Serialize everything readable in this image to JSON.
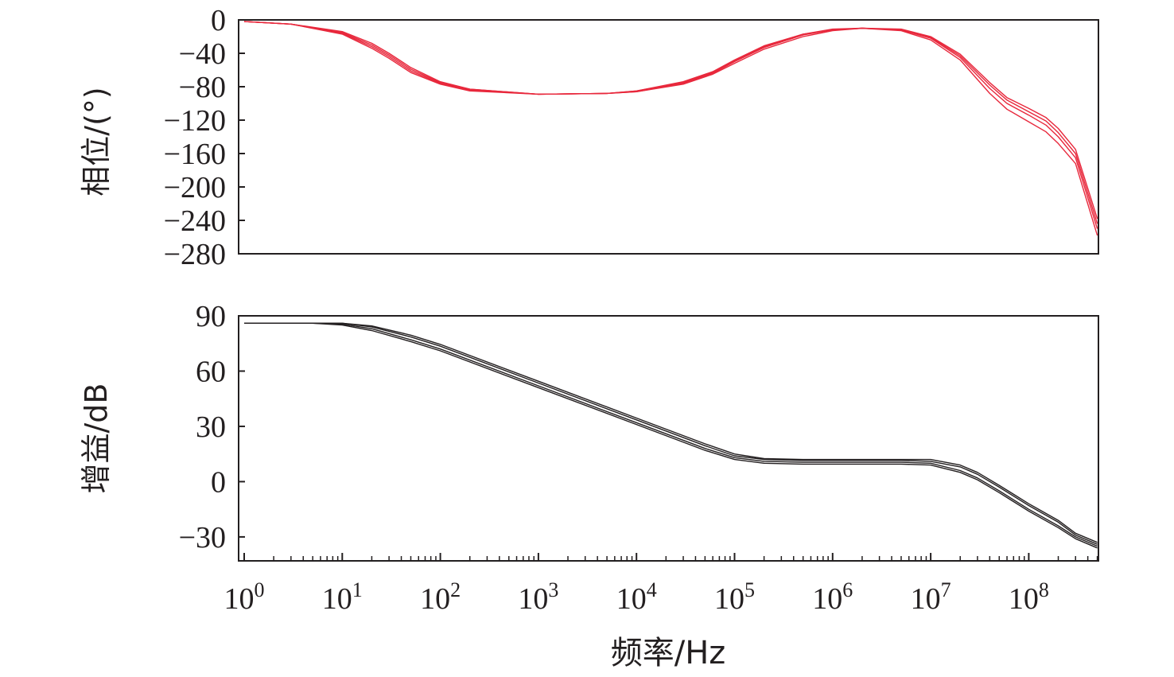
{
  "chart_data": [
    {
      "type": "line",
      "panel": "phase",
      "ylabel": "相位/(°)",
      "xscale": "log",
      "xlim": [
        1,
        500000000
      ],
      "ylim": [
        -280,
        0
      ],
      "yticks": [
        0,
        -40,
        -80,
        -120,
        -160,
        -200,
        -240,
        -280
      ],
      "ytick_labels": [
        "0",
        "−40",
        "−80",
        "−120",
        "−160",
        "−200",
        "−240",
        "−280"
      ],
      "grid": false,
      "line_color": "#e8283c",
      "x": [
        1,
        3,
        10,
        20,
        30,
        50,
        100,
        200,
        1000,
        5000,
        10000,
        30000,
        60000,
        100000,
        200000,
        500000,
        1000000,
        2000000,
        5000000,
        10000000,
        20000000,
        40000000,
        60000000,
        100000000,
        150000000,
        200000000,
        300000000,
        500000000
      ],
      "series": [
        {
          "values": [
            -2,
            -5,
            -17,
            -34,
            -46,
            -63,
            -77,
            -85,
            -89,
            -88,
            -86,
            -77,
            -65,
            -52,
            -35,
            -20,
            -13,
            -10,
            -13,
            -24,
            -48,
            -88,
            -107,
            -122,
            -134,
            -148,
            -172,
            -258
          ]
        },
        {
          "values": [
            -2,
            -5,
            -16,
            -32,
            -44,
            -61,
            -76,
            -84,
            -89,
            -88,
            -86,
            -76,
            -64,
            -50,
            -33,
            -18,
            -12,
            -10,
            -12,
            -22,
            -45,
            -82,
            -100,
            -114,
            -126,
            -140,
            -165,
            -250
          ]
        },
        {
          "values": [
            -2,
            -5,
            -15,
            -30,
            -42,
            -59,
            -75,
            -83,
            -89,
            -88,
            -85,
            -75,
            -63,
            -49,
            -32,
            -17,
            -12,
            -10,
            -12,
            -21,
            -43,
            -78,
            -96,
            -110,
            -121,
            -135,
            -160,
            -244
          ]
        },
        {
          "values": [
            -2,
            -5,
            -14,
            -28,
            -40,
            -57,
            -74,
            -83,
            -89,
            -88,
            -85,
            -74,
            -62,
            -48,
            -31,
            -17,
            -11,
            -10,
            -11,
            -20,
            -41,
            -75,
            -93,
            -106,
            -117,
            -130,
            -155,
            -238
          ]
        }
      ]
    },
    {
      "type": "line",
      "panel": "gain",
      "ylabel": "增益/dB",
      "xlabel": "频率/Hz",
      "xscale": "log",
      "xlim": [
        1,
        500000000
      ],
      "ylim": [
        -43,
        90
      ],
      "yticks": [
        90,
        60,
        30,
        0,
        -30
      ],
      "ytick_labels": [
        "90",
        "60",
        "30",
        "0",
        "−30"
      ],
      "xticks": [
        1,
        10,
        100,
        1000,
        10000,
        100000,
        1000000,
        10000000,
        100000000
      ],
      "xtick_labels": [
        {
          "base": "10",
          "exp": "0"
        },
        {
          "base": "10",
          "exp": "1"
        },
        {
          "base": "10",
          "exp": "2"
        },
        {
          "base": "10",
          "exp": "3"
        },
        {
          "base": "10",
          "exp": "4"
        },
        {
          "base": "10",
          "exp": "5"
        },
        {
          "base": "10",
          "exp": "6"
        },
        {
          "base": "10",
          "exp": "7"
        },
        {
          "base": "10",
          "exp": "8"
        }
      ],
      "grid": false,
      "line_color": "#231f20",
      "x": [
        1,
        3,
        5,
        10,
        20,
        50,
        100,
        1000,
        10000,
        50000,
        100000,
        200000,
        500000,
        1000000,
        5000000,
        10000000,
        20000000,
        30000000,
        50000000,
        100000000,
        200000000,
        300000000,
        500000000
      ],
      "series": [
        {
          "values": [
            86,
            86,
            86,
            85,
            82,
            76,
            71,
            51,
            31,
            17,
            12,
            10,
            9.5,
            9.5,
            9.5,
            9,
            5,
            1,
            -6,
            -16,
            -25,
            -31,
            -36
          ]
        },
        {
          "values": [
            86,
            86,
            86,
            85.5,
            83,
            77,
            72,
            52,
            32,
            18,
            13,
            11,
            10.5,
            10.5,
            10.5,
            10,
            6,
            2,
            -5,
            -15,
            -24,
            -30,
            -35
          ]
        },
        {
          "values": [
            86,
            86,
            86,
            86,
            84,
            78.5,
            73.5,
            53.5,
            33.5,
            19.5,
            14,
            12,
            11.5,
            11.5,
            11.5,
            11,
            8,
            4,
            -3,
            -13,
            -22,
            -29,
            -34
          ]
        },
        {
          "values": [
            86,
            86,
            86,
            86,
            84.5,
            79.5,
            74.5,
            54.5,
            34.5,
            20.5,
            15,
            12.5,
            12,
            12,
            12,
            12,
            9,
            5,
            -2,
            -12,
            -21,
            -28,
            -33
          ]
        }
      ]
    }
  ]
}
